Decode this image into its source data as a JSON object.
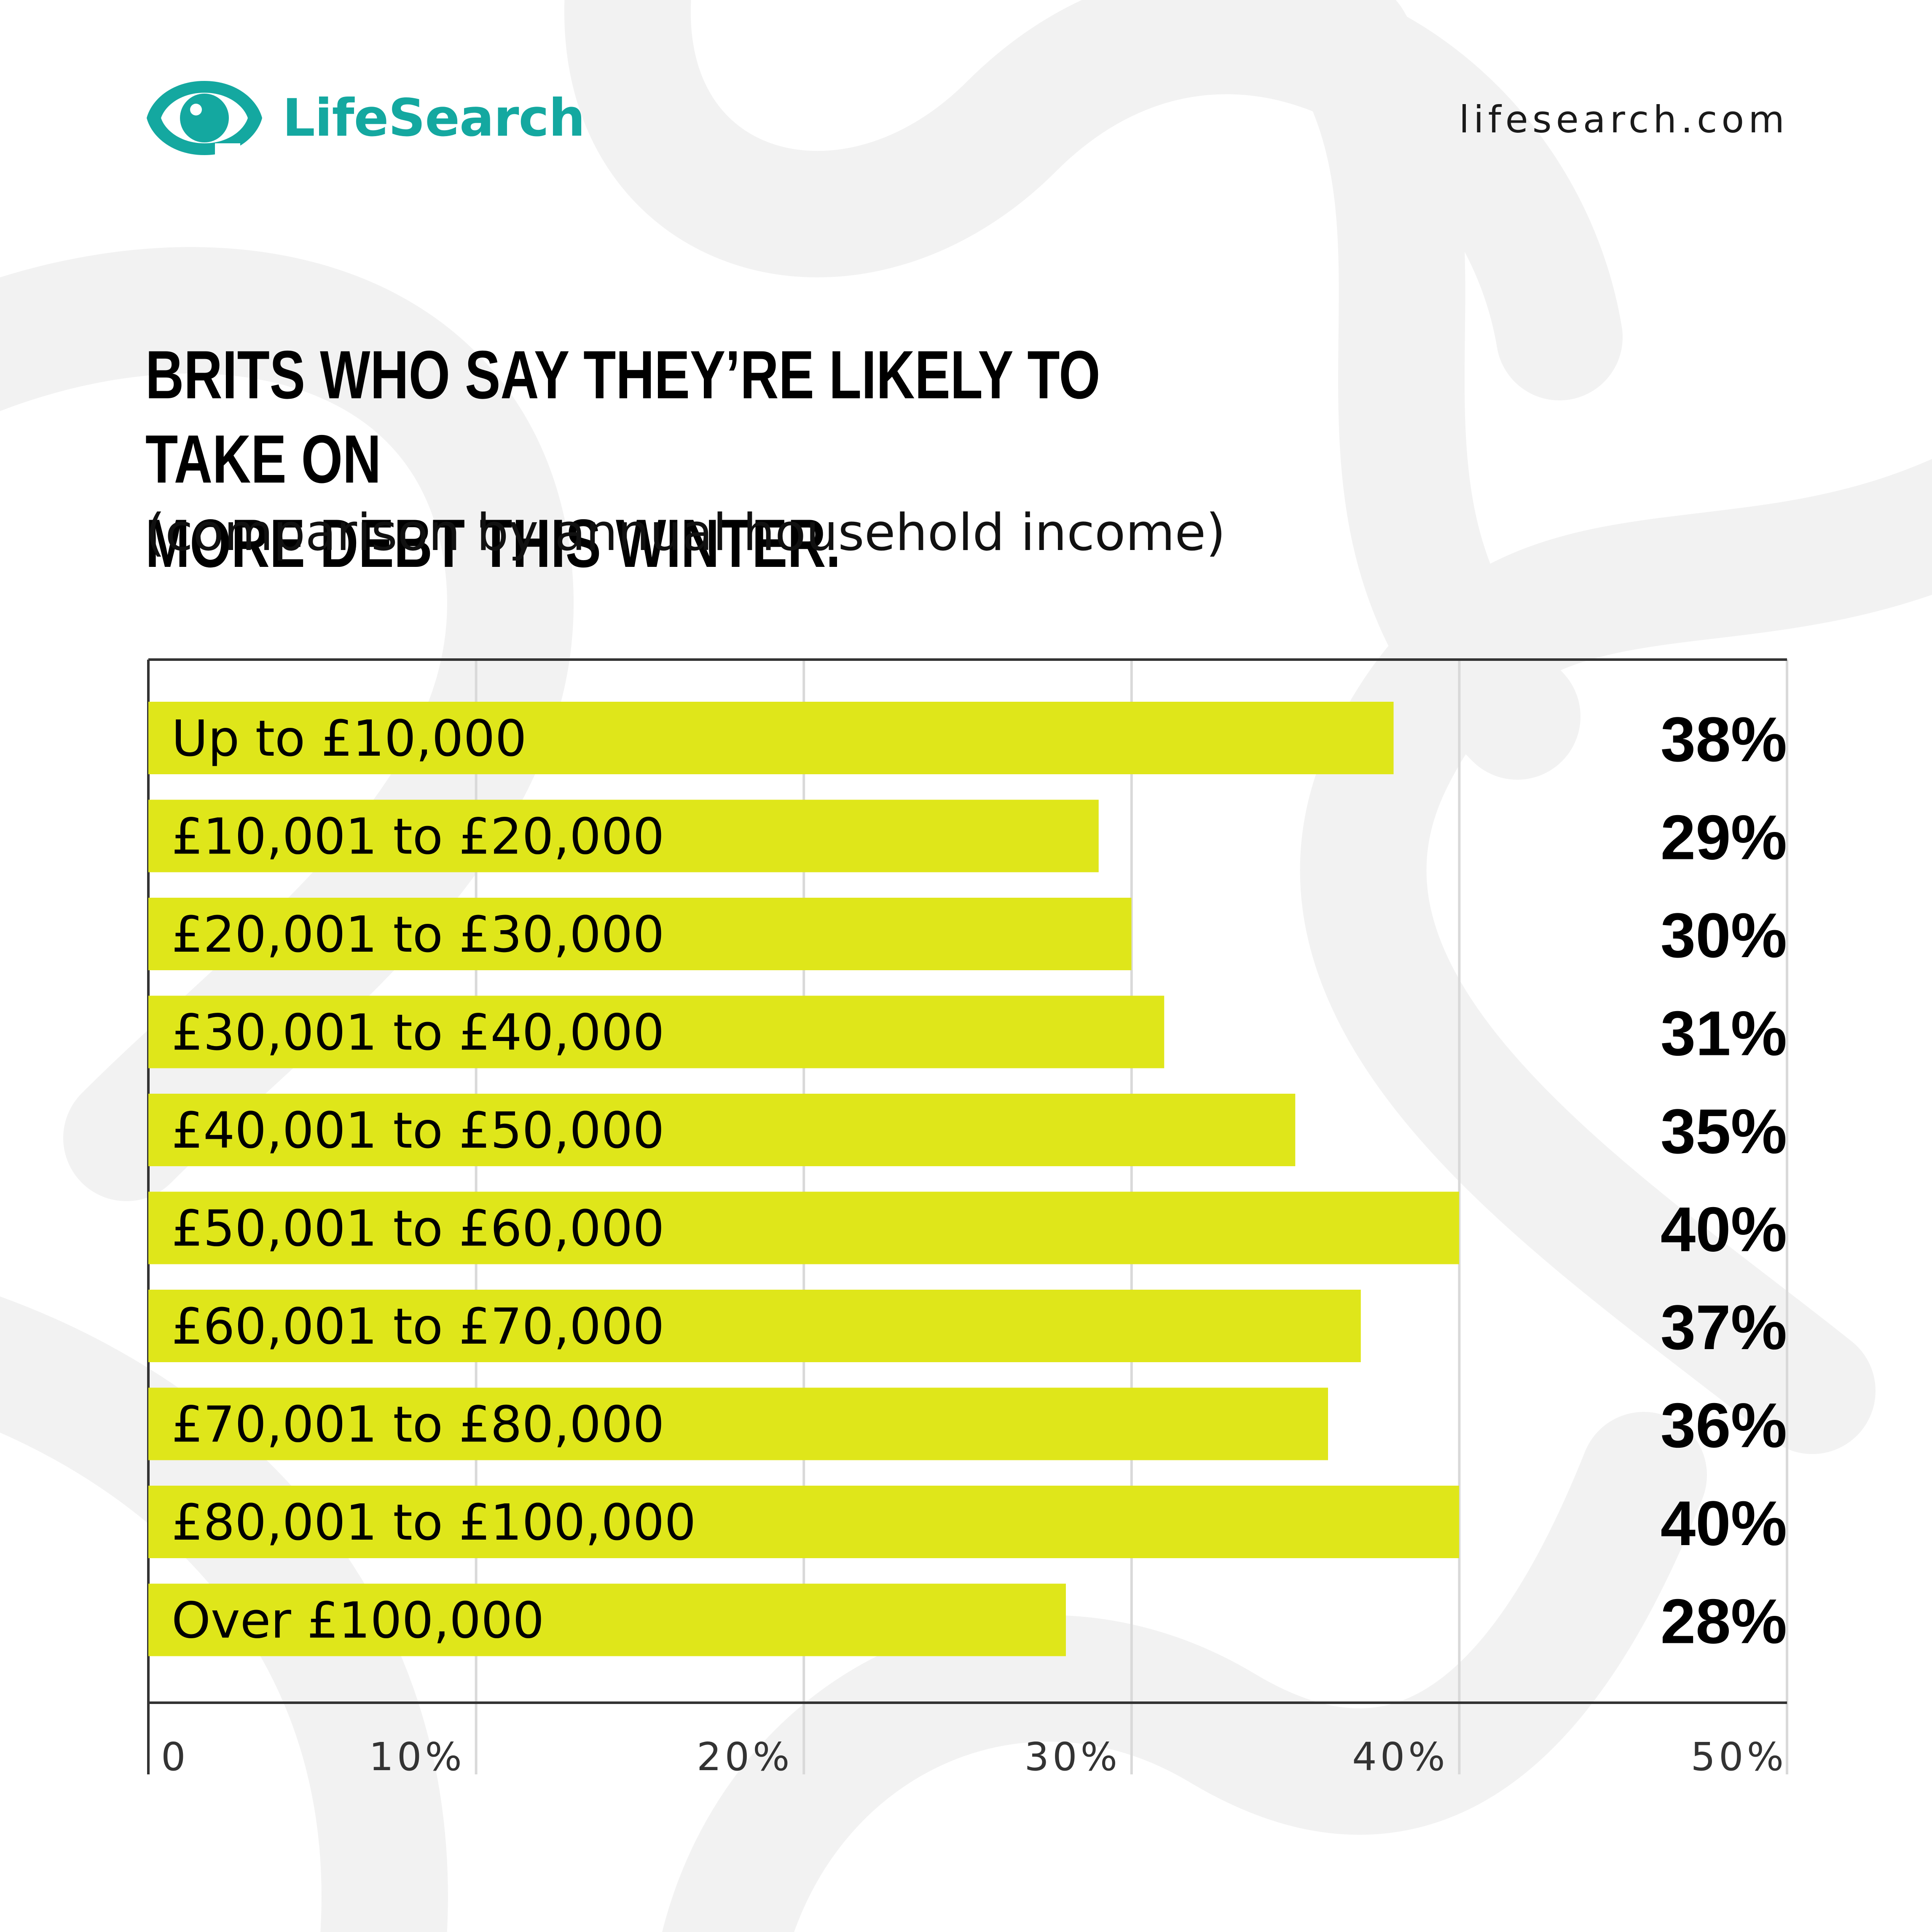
{
  "brand": {
    "name": "LifeSearch",
    "url": "lifesearch.com",
    "primary_color": "#14a8a0",
    "logo_icon": "eye-logo-icon"
  },
  "colors": {
    "bar": "#dfe61a",
    "gridline": "#d9d9d9",
    "axis": "#333333",
    "swirl": "#f2f2f2"
  },
  "chart_data": {
    "type": "bar",
    "orientation": "horizontal",
    "title_lines": [
      "BRITS WHO SAY THEY’RE LIKELY TO TAKE ON",
      "MORE DEBT THIS WINTER."
    ],
    "subtitle": "(comparison by annual household income)",
    "xlabel": "",
    "ylabel": "",
    "categories": [
      "Up to £10,000",
      "£10,001 to £20,000",
      "£20,001 to £30,000",
      "£30,001 to £40,000",
      "£40,001 to £50,000",
      "£50,001 to £60,000",
      "£60,001 to £70,000",
      "£70,001 to £80,000",
      "£80,001 to £100,000",
      "Over £100,000"
    ],
    "values": [
      38,
      29,
      30,
      31,
      35,
      40,
      37,
      36,
      40,
      28
    ],
    "value_labels": [
      "38%",
      "29%",
      "30%",
      "31%",
      "35%",
      "40%",
      "37%",
      "36%",
      "40%",
      "28%"
    ],
    "xlim": [
      0,
      50
    ],
    "x_ticks": [
      0,
      10,
      20,
      30,
      40,
      50
    ],
    "x_tick_labels": [
      "0",
      "10%",
      "20%",
      "30%",
      "40%",
      "50%"
    ],
    "grid": true,
    "legend": "none"
  }
}
